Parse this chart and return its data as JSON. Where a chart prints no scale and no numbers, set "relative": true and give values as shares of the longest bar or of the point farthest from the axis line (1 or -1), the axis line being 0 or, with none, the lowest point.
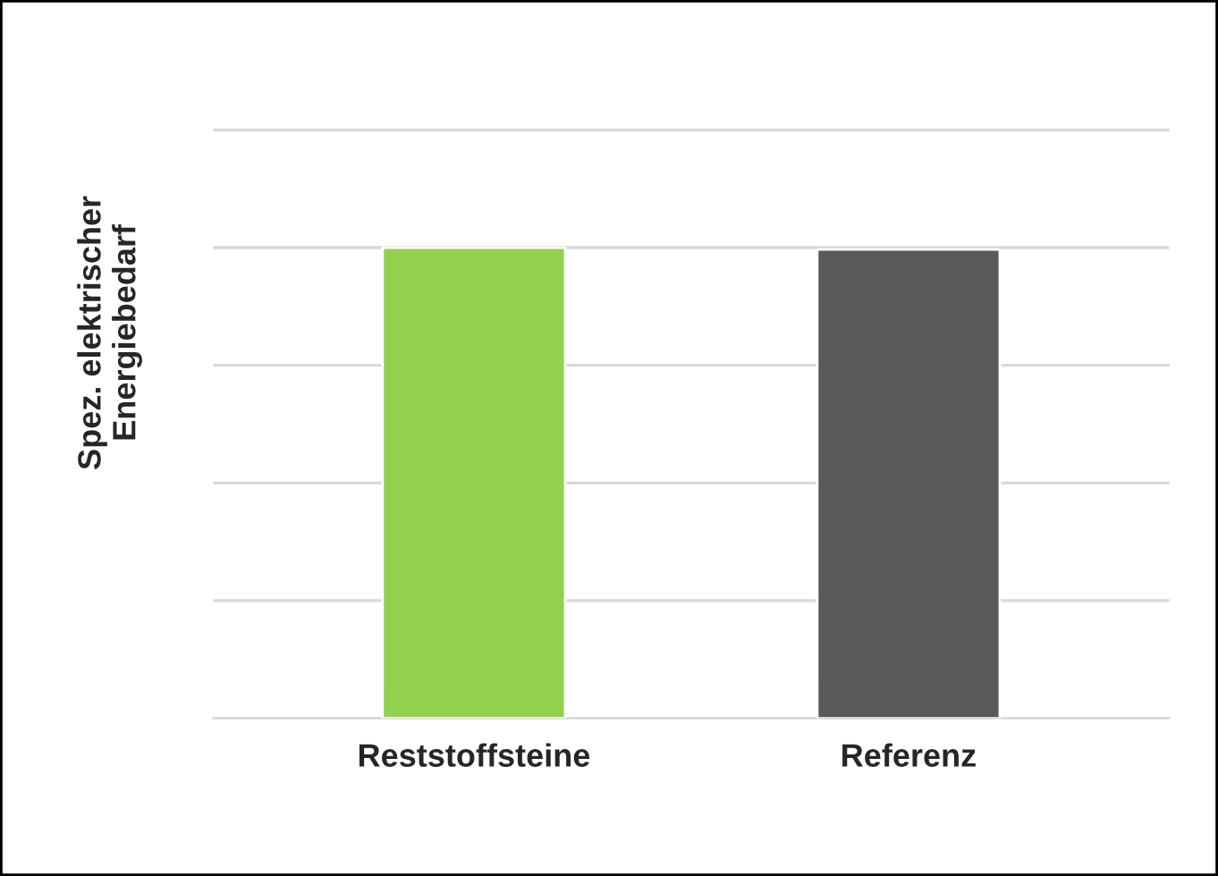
{
  "chart_data": {
    "type": "bar",
    "relative": true,
    "ylabel": "Spez. elektrischer\nEnergiebedarf",
    "categories": [
      "Reststoffsteine",
      "Referenz"
    ],
    "values": [
      1,
      0.996
    ],
    "colors": [
      "#92d050",
      "#595959"
    ],
    "grid": "y",
    "legend": false
  }
}
